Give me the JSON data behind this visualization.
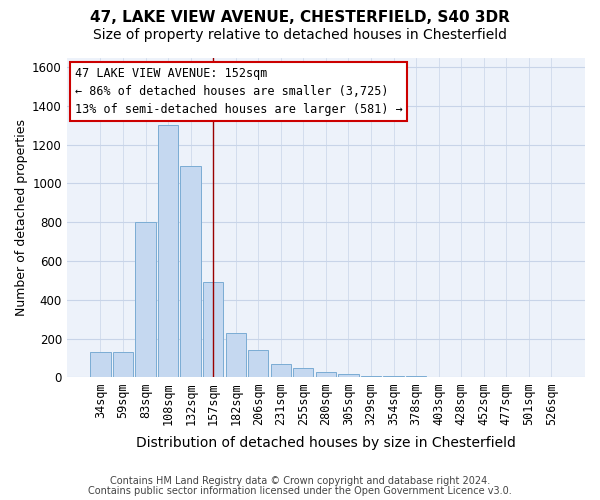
{
  "title1": "47, LAKE VIEW AVENUE, CHESTERFIELD, S40 3DR",
  "title2": "Size of property relative to detached houses in Chesterfield",
  "xlabel": "Distribution of detached houses by size in Chesterfield",
  "ylabel": "Number of detached properties",
  "categories": [
    "34sqm",
    "59sqm",
    "83sqm",
    "108sqm",
    "132sqm",
    "157sqm",
    "182sqm",
    "206sqm",
    "231sqm",
    "255sqm",
    "280sqm",
    "305sqm",
    "329sqm",
    "354sqm",
    "378sqm",
    "403sqm",
    "428sqm",
    "452sqm",
    "477sqm",
    "501sqm",
    "526sqm"
  ],
  "values": [
    130,
    130,
    800,
    1300,
    1090,
    490,
    230,
    140,
    70,
    50,
    25,
    15,
    8,
    5,
    5,
    3,
    2,
    2,
    2,
    2,
    2
  ],
  "bar_color": "#c5d8f0",
  "bar_edge_color": "#7bacd4",
  "vline_x": 5,
  "vline_color": "#990000",
  "ylim": [
    0,
    1650
  ],
  "yticks": [
    0,
    200,
    400,
    600,
    800,
    1000,
    1200,
    1400,
    1600
  ],
  "legend_text1": "47 LAKE VIEW AVENUE: 152sqm",
  "legend_text2": "← 86% of detached houses are smaller (3,725)",
  "legend_text3": "13% of semi-detached houses are larger (581) →",
  "legend_box_color": "#ffffff",
  "legend_border_color": "#cc0000",
  "footnote1": "Contains HM Land Registry data © Crown copyright and database right 2024.",
  "footnote2": "Contains public sector information licensed under the Open Government Licence v3.0.",
  "bg_color": "#edf2fa",
  "grid_color": "#c8d4e8",
  "title1_fontsize": 11,
  "title2_fontsize": 10,
  "xlabel_fontsize": 10,
  "ylabel_fontsize": 9,
  "tick_fontsize": 8.5,
  "legend_fontsize": 8.5,
  "footnote_fontsize": 7
}
